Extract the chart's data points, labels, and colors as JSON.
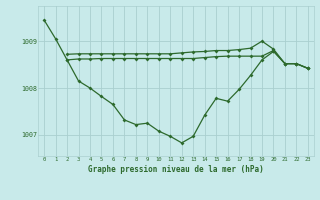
{
  "title": "Graphe pression niveau de la mer (hPa)",
  "bg_color": "#c8eaea",
  "grid_color": "#aacfcf",
  "line_color": "#2d6a2d",
  "xlim": [
    -0.5,
    23.5
  ],
  "ylim": [
    1006.55,
    1009.75
  ],
  "yticks": [
    1007,
    1008,
    1009
  ],
  "xticks": [
    0,
    1,
    2,
    3,
    4,
    5,
    6,
    7,
    8,
    9,
    10,
    11,
    12,
    13,
    14,
    15,
    16,
    17,
    18,
    19,
    20,
    21,
    22,
    23
  ],
  "line1_x": [
    0,
    1,
    2,
    3,
    4,
    5,
    6,
    7,
    8,
    9,
    10,
    11,
    12,
    13,
    14,
    15,
    16,
    17,
    18,
    19,
    20,
    21,
    22,
    23
  ],
  "line1_y": [
    1009.45,
    1009.05,
    1008.6,
    1008.15,
    1008.0,
    1007.82,
    1007.65,
    1007.32,
    1007.22,
    1007.25,
    1007.08,
    1006.97,
    1006.83,
    1006.97,
    1007.42,
    1007.78,
    1007.72,
    1007.97,
    1008.27,
    1008.6,
    1008.78,
    1008.52,
    1008.52,
    1008.42
  ],
  "line2_x": [
    2,
    3,
    4,
    5,
    6,
    7,
    8,
    9,
    10,
    11,
    12,
    13,
    14,
    15,
    16,
    17,
    18,
    19,
    20,
    21,
    22,
    23
  ],
  "line2_y": [
    1008.6,
    1008.62,
    1008.62,
    1008.63,
    1008.63,
    1008.63,
    1008.63,
    1008.63,
    1008.63,
    1008.63,
    1008.63,
    1008.63,
    1008.65,
    1008.67,
    1008.68,
    1008.68,
    1008.68,
    1008.68,
    1008.8,
    1008.52,
    1008.52,
    1008.42
  ],
  "line3_x": [
    2,
    3,
    4,
    5,
    6,
    7,
    8,
    9,
    10,
    11,
    12,
    13,
    14,
    15,
    16,
    17,
    18,
    19,
    20,
    21,
    22,
    23
  ],
  "line3_y": [
    1008.72,
    1008.73,
    1008.73,
    1008.73,
    1008.73,
    1008.73,
    1008.73,
    1008.73,
    1008.73,
    1008.73,
    1008.75,
    1008.77,
    1008.78,
    1008.8,
    1008.8,
    1008.82,
    1008.85,
    1009.0,
    1008.83,
    1008.52,
    1008.52,
    1008.42
  ]
}
